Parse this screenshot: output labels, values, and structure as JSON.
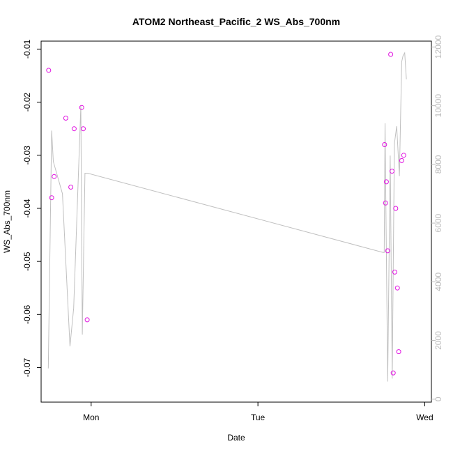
{
  "chart_data": {
    "type": "scatter",
    "title": "ATOM2 Northeast_Pacific_2 WS_Abs_700nm",
    "xlabel": "Date",
    "ylabel": "WS_Abs_700nm",
    "x_ticks": [
      "Mon",
      "Tue",
      "Wed"
    ],
    "x_range_days": [
      -0.3,
      2.04
    ],
    "y_left": {
      "range": [
        -0.0765,
        -0.0085
      ],
      "ticks": [
        -0.07,
        -0.06,
        -0.05,
        -0.04,
        -0.03,
        -0.02,
        -0.01
      ]
    },
    "y_right": {
      "range": [
        -100,
        12200
      ],
      "ticks": [
        0,
        2000,
        4000,
        6000,
        8000,
        10000,
        12000
      ],
      "color": "#bbbbbb"
    },
    "points": {
      "color": "#e010e0",
      "x_days": [
        -0.255,
        -0.237,
        -0.222,
        -0.152,
        -0.122,
        -0.102,
        -0.057,
        -0.047,
        -0.024,
        1.759,
        1.765,
        1.77,
        1.778,
        1.796,
        1.804,
        1.811,
        1.82,
        1.826,
        1.836,
        1.844,
        1.862,
        1.874
      ],
      "values": [
        -0.014,
        -0.038,
        -0.034,
        -0.023,
        -0.036,
        -0.025,
        -0.021,
        -0.025,
        -0.061,
        -0.028,
        -0.039,
        -0.035,
        -0.048,
        -0.011,
        -0.033,
        -0.071,
        -0.052,
        -0.04,
        -0.055,
        -0.067,
        -0.031,
        -0.03
      ]
    },
    "line": {
      "color": "#c0c0c0",
      "x_days": [
        -0.257,
        -0.237,
        -0.227,
        -0.172,
        -0.127,
        -0.105,
        -0.062,
        -0.053,
        -0.037,
        -0.022,
        1.75,
        1.757,
        1.762,
        1.778,
        1.793,
        1.805,
        1.818,
        1.832,
        1.848,
        1.862,
        1.87,
        1.88,
        1.89
      ],
      "values": [
        1050,
        9150,
        8100,
        7000,
        1800,
        3100,
        10000,
        2200,
        7700,
        7700,
        5000,
        5000,
        9400,
        600,
        8300,
        700,
        8700,
        9300,
        7600,
        11500,
        11700,
        11800,
        10900
      ]
    }
  }
}
